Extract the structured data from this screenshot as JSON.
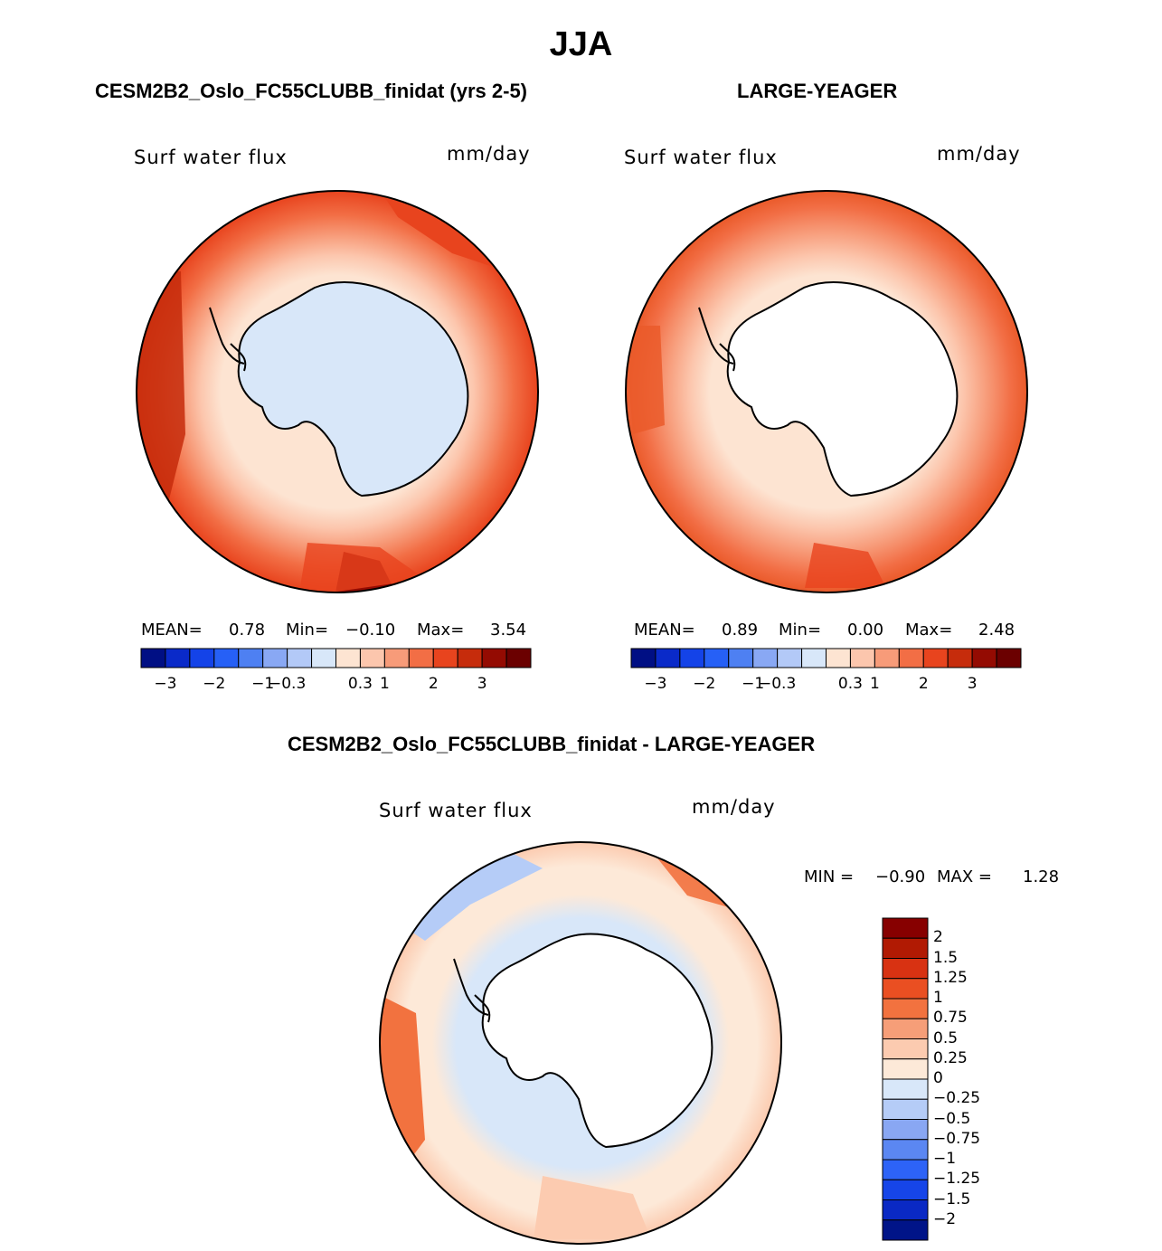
{
  "figure": {
    "title": "JJA",
    "panel_left": {
      "title": "CESM2B2_Oslo_FC55CLUBB_finidat (yrs 2-5)",
      "variable": "Surf water flux",
      "units": "mm/day",
      "mean_label": "MEAN=",
      "mean": "0.78",
      "min_label": "Min=",
      "min": "−0.10",
      "max_label": "Max=",
      "max": "3.54"
    },
    "panel_right": {
      "title": "LARGE-YEAGER",
      "variable": "Surf water flux",
      "units": "mm/day",
      "mean_label": "MEAN=",
      "mean": "0.89",
      "min_label": "Min=",
      "min": "0.00",
      "max_label": "Max=",
      "max": "2.48"
    },
    "panel_diff": {
      "title": "CESM2B2_Oslo_FC55CLUBB_finidat - LARGE-YEAGER",
      "variable": "Surf water flux",
      "units": "mm/day",
      "min_label": "MIN =",
      "min": "−0.90",
      "max_label": "MAX =",
      "max": "1.28"
    }
  },
  "colorbars": {
    "horizontal_colors": [
      "#000f84",
      "#0a2ac9",
      "#1443e8",
      "#2660f6",
      "#4e80f2",
      "#89a8f4",
      "#b3c9f7",
      "#d8e7f9",
      "#fde4d2",
      "#fcc6ad",
      "#f79b79",
      "#f26e45",
      "#e8441e",
      "#c62c0c",
      "#940b02",
      "#6b0000"
    ],
    "horizontal_ticks": [
      "−3",
      "−2",
      "−1",
      "−0.3",
      "0.3",
      "1",
      "2",
      "3"
    ],
    "vertical_colors_top_to_bottom": [
      "#870000",
      "#b11a03",
      "#d83212",
      "#ea4f22",
      "#f2723f",
      "#f69e78",
      "#fccbb0",
      "#fde9d8",
      "#d8e7f9",
      "#b5ccf7",
      "#89a7f3",
      "#5b87f2",
      "#2d63f7",
      "#1645e8",
      "#0a29c4",
      "#001488"
    ],
    "vertical_ticks": [
      "2",
      "1.5",
      "1.25",
      "1",
      "0.75",
      "0.5",
      "0.25",
      "0",
      "−0.25",
      "−0.5",
      "−0.75",
      "−1",
      "−1.25",
      "−1.5",
      "−2"
    ]
  }
}
